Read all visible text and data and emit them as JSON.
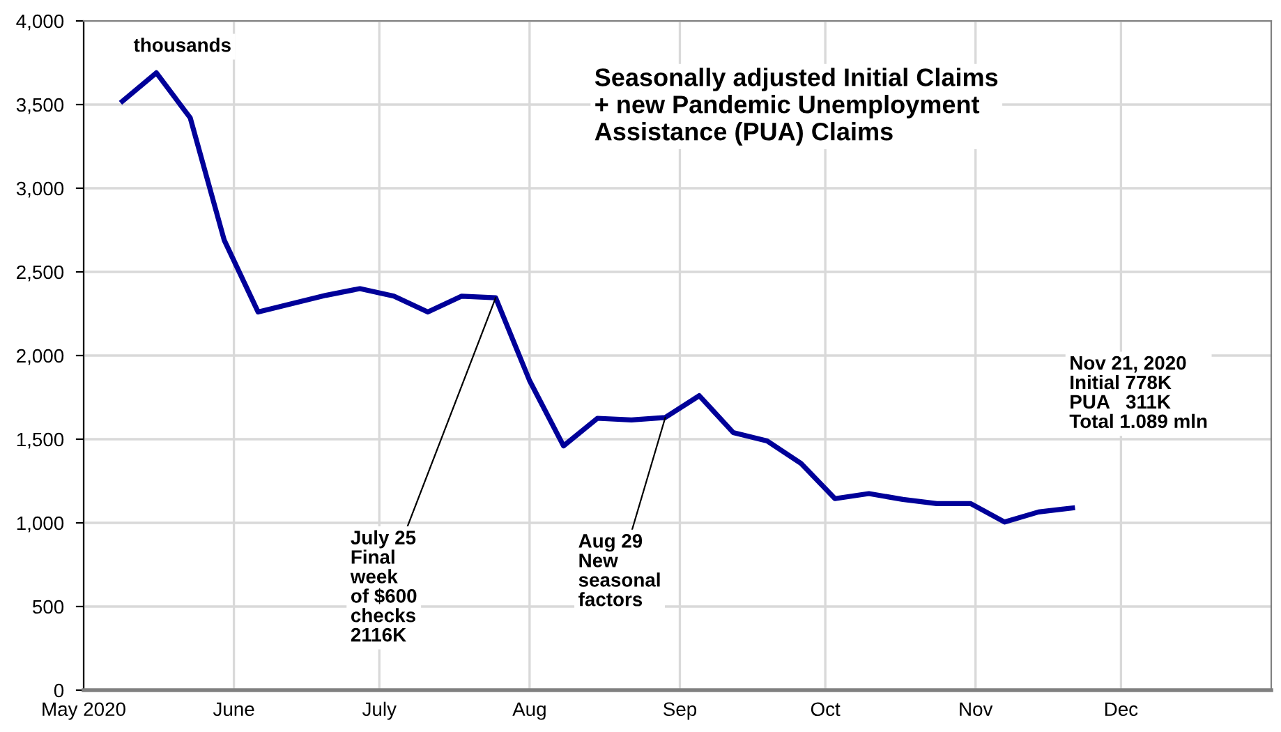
{
  "chart_data": {
    "type": "line",
    "title": "Seasonally adjusted Initial Claims\n+ new Pandemic Unemployment\nAssistance (PUA) Claims",
    "x": [
      "2020-05-09",
      "2020-05-16",
      "2020-05-23",
      "2020-05-30",
      "2020-06-06",
      "2020-06-13",
      "2020-06-20",
      "2020-06-27",
      "2020-07-04",
      "2020-07-11",
      "2020-07-18",
      "2020-07-25",
      "2020-08-01",
      "2020-08-08",
      "2020-08-15",
      "2020-08-22",
      "2020-08-29",
      "2020-09-05",
      "2020-09-12",
      "2020-09-19",
      "2020-09-26",
      "2020-10-03",
      "2020-10-10",
      "2020-10-17",
      "2020-10-24",
      "2020-10-31",
      "2020-11-07",
      "2020-11-14",
      "2020-11-21"
    ],
    "series": [
      {
        "color": "#000099",
        "values": [
          3520,
          3690,
          3420,
          2690,
          2260,
          2310,
          2360,
          2400,
          2355,
          2260,
          2355,
          2345,
          1850,
          1460,
          1625,
          1615,
          1630,
          1760,
          1540,
          1490,
          1355,
          1145,
          1175,
          1140,
          1115,
          1115,
          1005,
          1065,
          1089
        ]
      }
    ],
    "xlim": [
      "2020-05-01",
      "2021-01-01"
    ],
    "xticks": [
      {
        "value": "2020-05-01",
        "label": "May 2020"
      },
      {
        "value": "2020-06-01",
        "label": "June"
      },
      {
        "value": "2020-07-01",
        "label": "July"
      },
      {
        "value": "2020-08-01",
        "label": "Aug"
      },
      {
        "value": "2020-09-01",
        "label": "Sep"
      },
      {
        "value": "2020-10-01",
        "label": "Oct"
      },
      {
        "value": "2020-11-01",
        "label": "Nov"
      },
      {
        "value": "2020-12-01",
        "label": "Dec"
      }
    ],
    "ylim": [
      0,
      4000
    ],
    "yticks": [
      0,
      {
        "value": 500,
        "label": "500"
      },
      {
        "value": 1000,
        "label": "1,000"
      },
      {
        "value": 1500,
        "label": "1,500"
      },
      {
        "value": 2000,
        "label": "2,000"
      },
      {
        "value": 2500,
        "label": "2,500"
      },
      {
        "value": 3000,
        "label": "3,000"
      },
      {
        "value": 3500,
        "label": "3,500"
      },
      {
        "value": 4000,
        "label": "4,000"
      }
    ],
    "grid": true,
    "marker": "none",
    "line_style": "solid",
    "legend": false,
    "annotations": [
      "thousands",
      {
        "text": "July 25\nFinal\nweek\nof $600\nchecks\n2116K",
        "x": "2020-07-25",
        "y": 2345
      },
      {
        "text": "Aug 29\nNew\nseasonal\nfactors",
        "x": "2020-08-29",
        "y": 1630
      },
      "Nov 21, 2020\nInitial 778K\nPUA   311K\nTotal 1.089 mln"
    ]
  }
}
